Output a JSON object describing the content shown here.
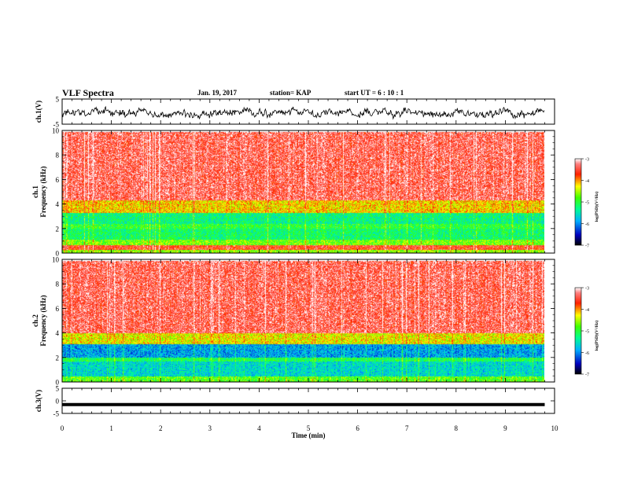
{
  "header": {
    "title": "VLF Spectra",
    "date": "Jan. 19, 2017",
    "station": "station= KAP",
    "start": "start  UT =   6 : 10 : 1"
  },
  "chart_data": [
    {
      "type": "line",
      "panel": "ch1-waveform",
      "ylabel": "ch.1(V)",
      "ylim": [
        -5,
        5
      ],
      "yticks": [
        5,
        -5
      ],
      "xlim": [
        0,
        10
      ],
      "series_color": "#000000",
      "signal": "noisy waveform, approx. -2.5 V to +2.5 V centred slightly below 0 V, spanning 0 to 9.8 min"
    },
    {
      "type": "heatmap",
      "panel": "ch1-spectrogram",
      "ylabel_line1": "ch.1",
      "ylabel_line2": "Frequency (kHz)",
      "ylim": [
        0,
        10
      ],
      "yticks": [
        0,
        2,
        4,
        6,
        8,
        10
      ],
      "xlim": [
        0,
        10
      ],
      "data_extent_min": 9.8,
      "colorbar": {
        "label": "log(PSD)(V²/Hz)",
        "range": [
          -7,
          -3
        ],
        "ticks": [
          -3,
          -4,
          -5,
          -6,
          -7
        ]
      },
      "bands": [
        {
          "from_khz": 0.0,
          "to_khz": 0.3,
          "level": -4.6
        },
        {
          "from_khz": 0.3,
          "to_khz": 0.7,
          "level": -3.6
        },
        {
          "from_khz": 0.7,
          "to_khz": 1.1,
          "level": -4.7
        },
        {
          "from_khz": 1.1,
          "to_khz": 2.0,
          "level": -5.2
        },
        {
          "from_khz": 2.0,
          "to_khz": 2.4,
          "level": -5.0
        },
        {
          "from_khz": 2.4,
          "to_khz": 3.3,
          "level": -5.3
        },
        {
          "from_khz": 3.3,
          "to_khz": 4.3,
          "level": -4.2
        },
        {
          "from_khz": 4.3,
          "to_khz": 9.9,
          "level": -3.4
        }
      ]
    },
    {
      "type": "heatmap",
      "panel": "ch2-spectrogram",
      "ylabel_line1": "ch.2",
      "ylabel_line2": "Frequency (kHz)",
      "ylim": [
        0,
        10
      ],
      "yticks": [
        0,
        2,
        4,
        6,
        8,
        10
      ],
      "xlim": [
        0,
        10
      ],
      "data_extent_min": 9.8,
      "colorbar": {
        "label": "log(PSD)(V²/Hz)",
        "range": [
          -7,
          -3
        ],
        "ticks": [
          -3,
          -4,
          -5,
          -6,
          -7
        ]
      },
      "bands": [
        {
          "from_khz": 0.0,
          "to_khz": 0.5,
          "level": -4.8
        },
        {
          "from_khz": 0.5,
          "to_khz": 1.7,
          "level": -5.6
        },
        {
          "from_khz": 1.7,
          "to_khz": 2.0,
          "level": -5.1
        },
        {
          "from_khz": 2.0,
          "to_khz": 3.1,
          "level": -5.9
        },
        {
          "from_khz": 3.1,
          "to_khz": 4.0,
          "level": -4.3
        },
        {
          "from_khz": 4.0,
          "to_khz": 9.9,
          "level": -3.4
        }
      ]
    },
    {
      "type": "line",
      "panel": "ch3-waveform",
      "ylabel": "ch.3(V)",
      "ylim": [
        -5,
        5
      ],
      "yticks": [
        5,
        0,
        -5
      ],
      "xlim": [
        0,
        10
      ],
      "series_color": "#000000",
      "signal": "flat thick trace near -1.5 V spanning 0 to 9.8 min"
    }
  ],
  "x_axis": {
    "label": "Time (min)",
    "ticks": [
      0,
      1,
      2,
      3,
      4,
      5,
      6,
      7,
      8,
      9,
      10
    ]
  }
}
